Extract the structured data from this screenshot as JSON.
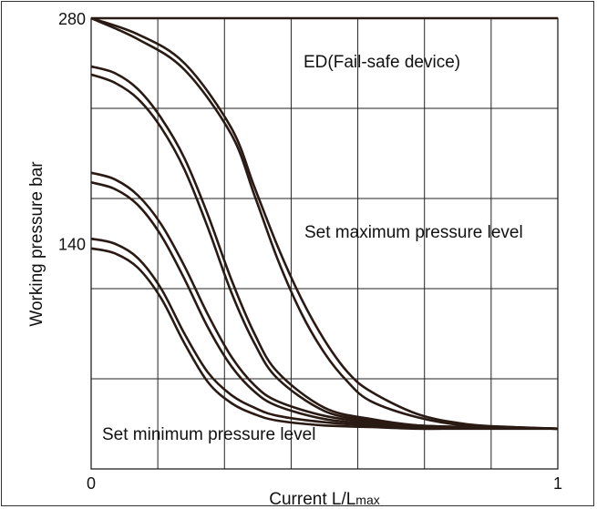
{
  "chart_data": {
    "type": "line",
    "xlabel_main": "Current L/L",
    "xlabel_sub": "max",
    "ylabel": "Working pressure bar",
    "xlim": [
      0,
      1
    ],
    "ylim": [
      0,
      280
    ],
    "x_ticks": [
      {
        "value": 0,
        "label": "0"
      },
      {
        "value": 1,
        "label": "1"
      }
    ],
    "y_ticks": [
      {
        "value": 280,
        "label": "280"
      },
      {
        "value": 140,
        "label": "140"
      }
    ],
    "grid": true,
    "annotations": {
      "ed": "ED(Fail-safe device)",
      "max": "Set maximum pressure level",
      "min": "Set minimum pressure level"
    },
    "series": [
      {
        "values": [
          [
            0,
            280
          ],
          [
            0.15,
            280
          ],
          [
            0.3,
            280
          ],
          [
            0.45,
            280
          ],
          [
            0.6,
            280
          ],
          [
            0.75,
            280
          ],
          [
            0.9,
            280
          ],
          [
            1,
            280
          ]
        ]
      },
      {
        "values": [
          [
            0,
            280
          ],
          [
            0.1,
            270
          ],
          [
            0.2,
            252
          ],
          [
            0.3,
            212
          ],
          [
            0.35,
            175
          ],
          [
            0.4,
            138
          ],
          [
            0.45,
            106
          ],
          [
            0.5,
            80
          ],
          [
            0.55,
            60
          ],
          [
            0.6,
            48
          ],
          [
            0.7,
            34
          ],
          [
            0.8,
            28
          ],
          [
            0.9,
            26
          ],
          [
            1,
            25
          ]
        ]
      },
      {
        "values": [
          [
            0,
            280
          ],
          [
            0.1,
            267
          ],
          [
            0.2,
            248
          ],
          [
            0.3,
            208
          ],
          [
            0.35,
            170
          ],
          [
            0.4,
            130
          ],
          [
            0.45,
            97
          ],
          [
            0.5,
            72
          ],
          [
            0.55,
            54
          ],
          [
            0.6,
            42
          ],
          [
            0.7,
            32
          ],
          [
            0.8,
            27
          ],
          [
            0.9,
            26
          ],
          [
            1,
            25
          ]
        ]
      },
      {
        "values": [
          [
            0,
            250
          ],
          [
            0.05,
            246
          ],
          [
            0.1,
            236
          ],
          [
            0.15,
            218
          ],
          [
            0.2,
            193
          ],
          [
            0.25,
            158
          ],
          [
            0.3,
            118
          ],
          [
            0.35,
            84
          ],
          [
            0.4,
            60
          ],
          [
            0.5,
            38
          ],
          [
            0.6,
            31
          ],
          [
            0.7,
            27
          ],
          [
            0.8,
            26
          ],
          [
            1,
            25
          ]
        ]
      },
      {
        "values": [
          [
            0,
            245
          ],
          [
            0.05,
            240
          ],
          [
            0.1,
            230
          ],
          [
            0.15,
            212
          ],
          [
            0.2,
            186
          ],
          [
            0.25,
            150
          ],
          [
            0.3,
            110
          ],
          [
            0.35,
            78
          ],
          [
            0.4,
            56
          ],
          [
            0.5,
            36
          ],
          [
            0.6,
            30
          ],
          [
            0.7,
            27
          ],
          [
            0.8,
            26
          ],
          [
            1,
            25
          ]
        ]
      },
      {
        "values": [
          [
            0,
            184
          ],
          [
            0.05,
            180
          ],
          [
            0.1,
            170
          ],
          [
            0.15,
            152
          ],
          [
            0.2,
            126
          ],
          [
            0.25,
            96
          ],
          [
            0.3,
            70
          ],
          [
            0.35,
            52
          ],
          [
            0.4,
            42
          ],
          [
            0.5,
            33
          ],
          [
            0.6,
            29
          ],
          [
            0.7,
            27
          ],
          [
            0.8,
            26
          ],
          [
            1,
            25
          ]
        ]
      },
      {
        "values": [
          [
            0,
            178
          ],
          [
            0.05,
            174
          ],
          [
            0.1,
            164
          ],
          [
            0.15,
            145
          ],
          [
            0.2,
            118
          ],
          [
            0.25,
            88
          ],
          [
            0.3,
            64
          ],
          [
            0.35,
            48
          ],
          [
            0.4,
            39
          ],
          [
            0.5,
            31
          ],
          [
            0.6,
            28
          ],
          [
            0.7,
            26
          ],
          [
            0.8,
            26
          ],
          [
            1,
            25
          ]
        ]
      },
      {
        "values": [
          [
            0,
            143
          ],
          [
            0.05,
            140
          ],
          [
            0.1,
            131
          ],
          [
            0.15,
            112
          ],
          [
            0.2,
            84
          ],
          [
            0.25,
            60
          ],
          [
            0.3,
            46
          ],
          [
            0.35,
            38
          ],
          [
            0.4,
            33
          ],
          [
            0.5,
            29
          ],
          [
            0.6,
            27
          ],
          [
            0.7,
            26
          ],
          [
            0.8,
            26
          ],
          [
            1,
            25
          ]
        ]
      },
      {
        "values": [
          [
            0,
            137
          ],
          [
            0.05,
            134
          ],
          [
            0.1,
            125
          ],
          [
            0.15,
            106
          ],
          [
            0.2,
            78
          ],
          [
            0.25,
            54
          ],
          [
            0.3,
            41
          ],
          [
            0.35,
            34
          ],
          [
            0.4,
            30
          ],
          [
            0.5,
            27
          ],
          [
            0.6,
            26
          ],
          [
            0.7,
            25
          ],
          [
            0.8,
            25
          ],
          [
            1,
            25
          ]
        ]
      }
    ]
  }
}
